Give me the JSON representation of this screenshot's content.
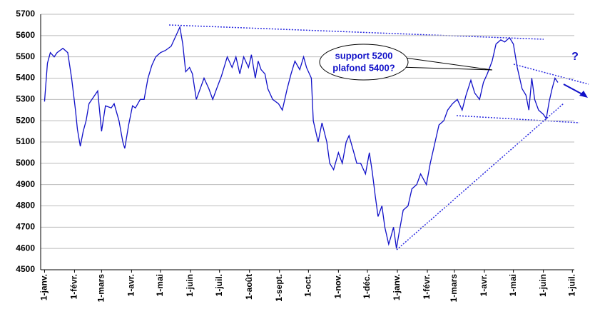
{
  "chart_data": {
    "type": "line",
    "annotations": [
      "support 5200",
      "plafond 5400?",
      "?"
    ],
    "x": [
      0,
      3,
      6,
      10,
      13,
      19,
      24,
      28,
      32,
      34,
      37,
      40,
      43,
      46,
      52,
      55,
      59,
      63,
      69,
      72,
      77,
      81,
      83,
      87,
      91,
      94,
      99,
      103,
      107,
      111,
      115,
      120,
      125,
      131,
      136,
      140,
      143,
      146,
      150,
      153,
      157,
      161,
      165,
      170,
      174,
      178,
      183,
      189,
      194,
      198,
      202,
      206,
      211,
      214,
      218,
      221,
      224,
      228,
      231,
      236,
      242,
      246,
      251,
      255,
      259,
      264,
      268,
      271,
      276,
      278,
      283,
      287,
      292,
      295,
      299,
      304,
      308,
      312,
      315,
      320,
      323,
      327,
      332,
      336,
      339,
      342,
      345,
      349,
      352,
      356,
      358,
      361,
      364,
      367,
      371,
      376,
      380,
      385,
      389,
      395,
      399,
      404,
      408,
      413,
      417,
      422,
      427,
      432,
      436,
      441,
      445,
      450,
      454,
      458,
      463,
      467,
      472,
      476,
      481,
      485,
      489,
      494,
      498,
      501,
      504,
      507,
      511,
      516,
      519,
      522,
      525,
      528,
      531
    ],
    "series": [
      {
        "color": "#1010c8",
        "values": [
          5290,
          5470,
          5520,
          5500,
          5520,
          5540,
          5520,
          5400,
          5250,
          5160,
          5080,
          5150,
          5200,
          5280,
          5320,
          5340,
          5150,
          5270,
          5260,
          5280,
          5200,
          5100,
          5070,
          5180,
          5270,
          5260,
          5300,
          5300,
          5400,
          5460,
          5500,
          5520,
          5530,
          5550,
          5600,
          5640,
          5560,
          5430,
          5450,
          5420,
          5300,
          5350,
          5400,
          5350,
          5300,
          5350,
          5410,
          5500,
          5450,
          5500,
          5420,
          5500,
          5450,
          5510,
          5400,
          5480,
          5440,
          5420,
          5350,
          5300,
          5280,
          5250,
          5350,
          5420,
          5480,
          5440,
          5500,
          5450,
          5400,
          5200,
          5100,
          5190,
          5100,
          5000,
          4970,
          5050,
          5000,
          5100,
          5130,
          5050,
          5000,
          5000,
          4950,
          5050,
          4960,
          4850,
          4750,
          4800,
          4700,
          4620,
          4650,
          4700,
          4600,
          4680,
          4780,
          4800,
          4880,
          4900,
          4950,
          4900,
          5000,
          5100,
          5180,
          5200,
          5250,
          5280,
          5300,
          5250,
          5320,
          5390,
          5330,
          5300,
          5380,
          5420,
          5480,
          5560,
          5580,
          5570,
          5590,
          5560,
          5450,
          5350,
          5320,
          5250,
          5400,
          5300,
          5250,
          5230,
          5210,
          5290,
          5350,
          5400,
          5380
        ]
      }
    ],
    "xlim": [
      -4,
      548
    ],
    "xticks": [
      {
        "value": 0,
        "label": "1-janv."
      },
      {
        "value": 31,
        "label": "1-févr."
      },
      {
        "value": 59,
        "label": "1-mars"
      },
      {
        "value": 90,
        "label": "1-avr."
      },
      {
        "value": 120,
        "label": "1-mai"
      },
      {
        "value": 151,
        "label": "1-juin"
      },
      {
        "value": 181,
        "label": "1-juil."
      },
      {
        "value": 212,
        "label": "1-août"
      },
      {
        "value": 243,
        "label": "1-sept."
      },
      {
        "value": 273,
        "label": "1-oct."
      },
      {
        "value": 304,
        "label": "1-nov."
      },
      {
        "value": 334,
        "label": "1-déc."
      },
      {
        "value": 365,
        "label": "1-janv."
      },
      {
        "value": 396,
        "label": "1-févr."
      },
      {
        "value": 424,
        "label": "1-mars"
      },
      {
        "value": 455,
        "label": "1-avr."
      },
      {
        "value": 485,
        "label": "1-mai"
      },
      {
        "value": 516,
        "label": "1-juin"
      },
      {
        "value": 546,
        "label": "1-juil."
      }
    ],
    "ylim": [
      4500,
      5700
    ],
    "yticks": [
      4500,
      4600,
      4700,
      4800,
      4900,
      5000,
      5100,
      5200,
      5300,
      5400,
      5500,
      5600,
      5700
    ],
    "grid": true
  }
}
